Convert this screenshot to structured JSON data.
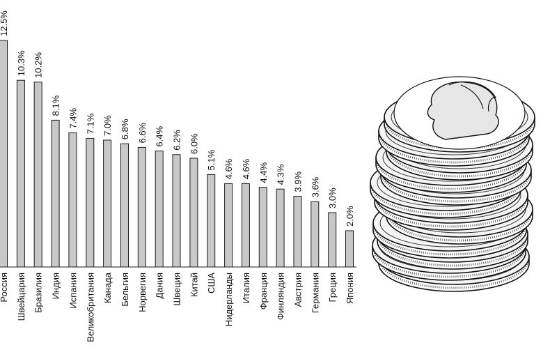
{
  "chart_data": {
    "type": "bar",
    "orientation": "vertical",
    "categories": [
      "Россия",
      "Швейцария",
      "Бразилия",
      "Индия",
      "Испания",
      "Великобритания",
      "Канада",
      "Бельгия",
      "Норвегия",
      "Дания",
      "Швеция",
      "Китай",
      "США",
      "Нидерланды",
      "Италия",
      "Франция",
      "Финляндия",
      "Австрия",
      "Германия",
      "Греция",
      "Япония"
    ],
    "values": [
      12.5,
      10.3,
      10.2,
      8.1,
      7.4,
      7.1,
      7.0,
      6.8,
      6.6,
      6.4,
      6.2,
      6.0,
      5.1,
      4.6,
      4.6,
      4.4,
      4.3,
      3.9,
      3.6,
      3.0,
      2.0
    ],
    "value_labels": [
      "12.5%",
      "10.3%",
      "10.2%",
      "8.1%",
      "7.4%",
      "7.1%",
      "7.0%",
      "6.8%",
      "6.6%",
      "6.4%",
      "6.2%",
      "6.0%",
      "5.1%",
      "4.6%",
      "4.6%",
      "4.4%",
      "4.3%",
      "3.9%",
      "3.6%",
      "3.0%",
      "2.0%"
    ],
    "ylim": [
      0,
      12.5
    ],
    "grid": false,
    "legend": "none",
    "colors": {
      "bar_fill": "#c8c8c8",
      "bar_stroke": "#1a1a1a"
    }
  },
  "decoration": {
    "illustration": "coin-stack-icon"
  }
}
